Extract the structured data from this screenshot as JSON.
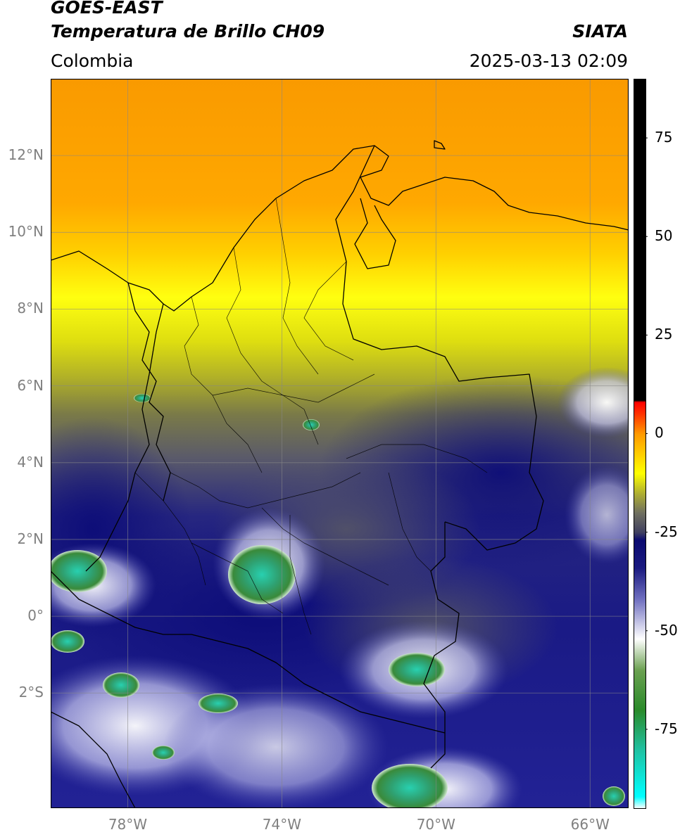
{
  "header": {
    "satellite": "GOES-EAST",
    "product": "Temperatura de Brillo CH09",
    "region": "Colombia",
    "source": "SIATA",
    "datetime": "2025-03-13 02:09"
  },
  "map": {
    "lon_range": [
      -80,
      -65
    ],
    "lat_range": [
      -5,
      14
    ],
    "lat_ticks": [
      {
        "value": 12,
        "label": "12°N"
      },
      {
        "value": 10,
        "label": "10°N"
      },
      {
        "value": 8,
        "label": "8°N"
      },
      {
        "value": 6,
        "label": "6°N"
      },
      {
        "value": 4,
        "label": "4°N"
      },
      {
        "value": 2,
        "label": "2°N"
      },
      {
        "value": 0,
        "label": "0°"
      },
      {
        "value": -2,
        "label": "2°S"
      }
    ],
    "lon_ticks": [
      {
        "value": -78,
        "label": "78°W"
      },
      {
        "value": -74,
        "label": "74°W"
      },
      {
        "value": -70,
        "label": "70°W"
      },
      {
        "value": -66,
        "label": "66°W"
      }
    ],
    "grid": true
  },
  "colorbar": {
    "range": [
      -95,
      90
    ],
    "ticks": [
      {
        "value": 75,
        "label": "75"
      },
      {
        "value": 50,
        "label": "50"
      },
      {
        "value": 25,
        "label": "25"
      },
      {
        "value": 0,
        "label": "0"
      },
      {
        "value": -25,
        "label": "-25"
      },
      {
        "value": -50,
        "label": "-50"
      },
      {
        "value": -75,
        "label": "-75"
      }
    ],
    "stops": [
      {
        "value": -95,
        "color": "#ffffff"
      },
      {
        "value": -92,
        "color": "#00ffff"
      },
      {
        "value": -80,
        "color": "#20c0a0"
      },
      {
        "value": -70,
        "color": "#2a8a2a"
      },
      {
        "value": -60,
        "color": "#6aa050"
      },
      {
        "value": -52,
        "color": "#ffffff"
      },
      {
        "value": -42,
        "color": "#7070c0"
      },
      {
        "value": -34,
        "color": "#1a1a80"
      },
      {
        "value": -27,
        "color": "#0a0a70"
      },
      {
        "value": -25,
        "color": "#404060"
      },
      {
        "value": -20,
        "color": "#707060"
      },
      {
        "value": -15,
        "color": "#b0b030"
      },
      {
        "value": -10,
        "color": "#ffff00"
      },
      {
        "value": 0,
        "color": "#ff9900"
      },
      {
        "value": 5,
        "color": "#ff3300"
      },
      {
        "value": 8,
        "color": "#ff0000"
      },
      {
        "value": 8.5,
        "color": "#000000"
      },
      {
        "value": 90,
        "color": "#000000"
      }
    ]
  }
}
